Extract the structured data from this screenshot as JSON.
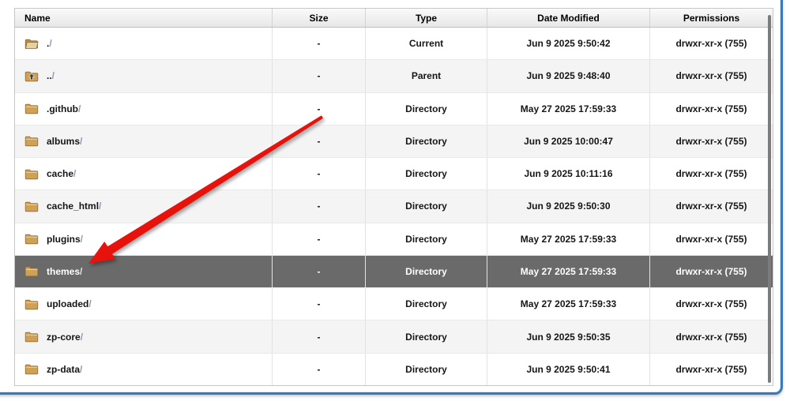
{
  "table": {
    "headers": {
      "name": "Name",
      "size": "Size",
      "type": "Type",
      "date_modified": "Date Modified",
      "permissions": "Permissions"
    },
    "rows": [
      {
        "name": "./",
        "icon": "folder-open-icon",
        "size": "-",
        "type": "Current",
        "date_modified": "Jun 9 2025 9:50:42",
        "permissions": "drwxr-xr-x (755)",
        "highlighted": false
      },
      {
        "name": "../",
        "icon": "folder-parent-icon",
        "size": "-",
        "type": "Parent",
        "date_modified": "Jun 9 2025 9:48:40",
        "permissions": "drwxr-xr-x (755)",
        "highlighted": false
      },
      {
        "name": ".github/",
        "icon": "folder-icon",
        "size": "-",
        "type": "Directory",
        "date_modified": "May 27 2025 17:59:33",
        "permissions": "drwxr-xr-x (755)",
        "highlighted": false
      },
      {
        "name": "albums/",
        "icon": "folder-icon",
        "size": "-",
        "type": "Directory",
        "date_modified": "Jun 9 2025 10:00:47",
        "permissions": "drwxr-xr-x (755)",
        "highlighted": false
      },
      {
        "name": "cache/",
        "icon": "folder-icon",
        "size": "-",
        "type": "Directory",
        "date_modified": "Jun 9 2025 10:11:16",
        "permissions": "drwxr-xr-x (755)",
        "highlighted": false
      },
      {
        "name": "cache_html/",
        "icon": "folder-icon",
        "size": "-",
        "type": "Directory",
        "date_modified": "Jun 9 2025 9:50:30",
        "permissions": "drwxr-xr-x (755)",
        "highlighted": false
      },
      {
        "name": "plugins/",
        "icon": "folder-icon",
        "size": "-",
        "type": "Directory",
        "date_modified": "May 27 2025 17:59:33",
        "permissions": "drwxr-xr-x (755)",
        "highlighted": false
      },
      {
        "name": "themes/",
        "icon": "folder-icon",
        "size": "-",
        "type": "Directory",
        "date_modified": "May 27 2025 17:59:33",
        "permissions": "drwxr-xr-x (755)",
        "highlighted": true
      },
      {
        "name": "uploaded/",
        "icon": "folder-icon",
        "size": "-",
        "type": "Directory",
        "date_modified": "May 27 2025 17:59:33",
        "permissions": "drwxr-xr-x (755)",
        "highlighted": false
      },
      {
        "name": "zp-core/",
        "icon": "folder-icon",
        "size": "-",
        "type": "Directory",
        "date_modified": "Jun 9 2025 9:50:35",
        "permissions": "drwxr-xr-x (755)",
        "highlighted": false
      },
      {
        "name": "zp-data/",
        "icon": "folder-icon",
        "size": "-",
        "type": "Directory",
        "date_modified": "Jun 9 2025 9:50:41",
        "permissions": "drwxr-xr-x (755)",
        "highlighted": false
      }
    ],
    "highlight_color": "#6a6a6a",
    "stripe_color": "#f4f4f4"
  },
  "annotation": {
    "arrow_color": "#e8120c",
    "target_row": "themes/"
  },
  "frame": {
    "accent_blue": "#3a79b5"
  }
}
